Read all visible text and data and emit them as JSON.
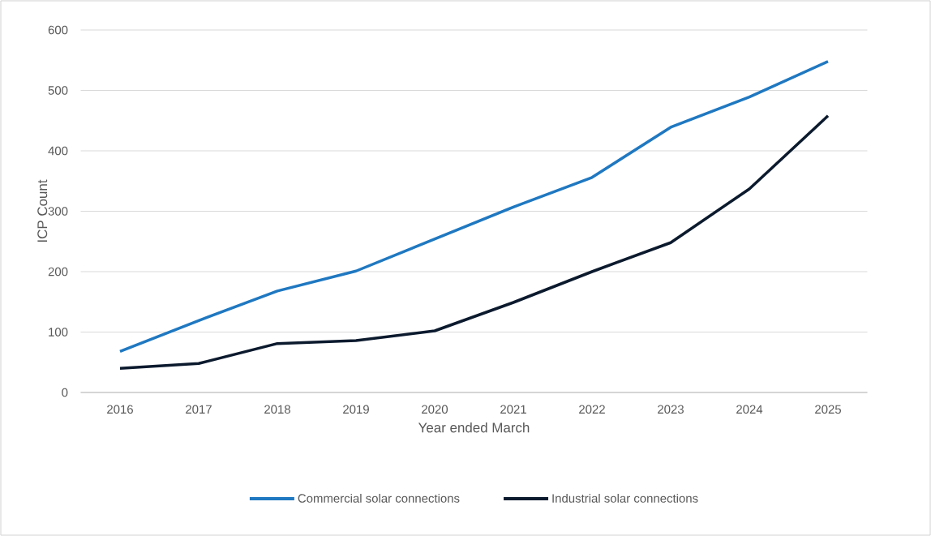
{
  "chart_data": {
    "type": "line",
    "xlabel": "Year ended March",
    "ylabel": "ICP Count",
    "categories": [
      "2016",
      "2017",
      "2018",
      "2019",
      "2020",
      "2021",
      "2022",
      "2023",
      "2024",
      "2025"
    ],
    "series": [
      {
        "name": "Commercial solar connections",
        "color": "#1f78c1",
        "values": [
          68,
          119,
          168,
          201,
          254,
          307,
          356,
          439,
          489,
          548
        ]
      },
      {
        "name": "Industrial solar connections",
        "color": "#0c1a2e",
        "values": [
          40,
          48,
          81,
          86,
          102,
          149,
          200,
          248,
          337,
          458
        ]
      }
    ],
    "ylim": [
      0,
      600
    ],
    "yticks": [
      0,
      100,
      200,
      300,
      400,
      500,
      600
    ],
    "grid": "y",
    "legend": "bottom",
    "marker": "none"
  }
}
